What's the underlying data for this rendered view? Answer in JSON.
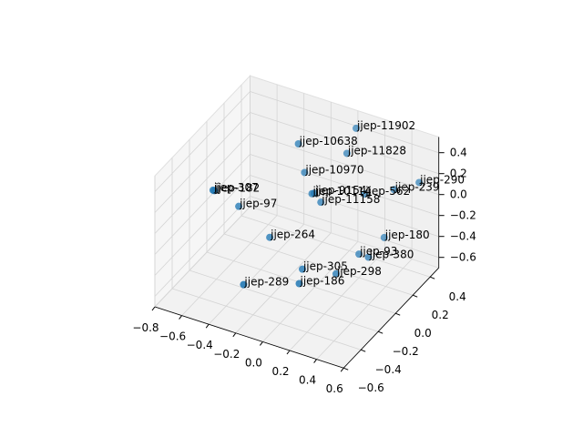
{
  "chart_data": {
    "type": "scatter3d",
    "labels": [
      "jjep-11902",
      "jjep-10638",
      "jjep-11828",
      "jjep-10970",
      "jjep-307",
      "jjep-182",
      "jjep-97",
      "jjep-290",
      "jjep-239",
      "jjep-10114",
      "jjep-9154",
      "jjep-11158",
      "jjep-562",
      "jjep-264",
      "jjep-180",
      "jjep-380",
      "jjep-93",
      "jjep-305",
      "jjep-298",
      "jjep-289",
      "jjep-186"
    ],
    "x": [
      0.0,
      -0.3,
      -0.03,
      -0.28,
      -0.76,
      -0.75,
      -0.64,
      0.48,
      0.32,
      -0.18,
      -0.17,
      -0.14,
      0.12,
      -0.41,
      0.24,
      0.2,
      0.13,
      -0.11,
      0.05,
      -0.36,
      -0.05
    ],
    "y": [
      0.48,
      0.28,
      0.42,
      0.32,
      0.01,
      0.01,
      0.12,
      0.46,
      0.42,
      0.25,
      0.26,
      0.29,
      0.39,
      0.12,
      0.43,
      0.31,
      0.31,
      0.03,
      0.17,
      -0.26,
      -0.1
    ],
    "z": [
      0.4,
      0.3,
      0.2,
      0.0,
      -0.1,
      -0.1,
      -0.3,
      0.1,
      0.0,
      -0.1,
      -0.1,
      -0.2,
      -0.1,
      -0.5,
      -0.5,
      -0.6,
      -0.6,
      -0.6,
      -0.7,
      -0.6,
      -0.6
    ],
    "color": "#1f77b4",
    "xlim": [
      -0.8,
      0.6
    ],
    "ylim": [
      -0.6,
      0.5
    ],
    "zlim": [
      -0.7,
      0.55
    ],
    "xticks": [
      {
        "value": -0.8,
        "label": "−0.8"
      },
      {
        "value": -0.6,
        "label": "−0.6"
      },
      {
        "value": -0.4,
        "label": "−0.4"
      },
      {
        "value": -0.2,
        "label": "−0.2"
      },
      {
        "value": 0,
        "label": "0.0"
      },
      0.2,
      0.4,
      0.6
    ],
    "yticks": [
      {
        "value": -0.6,
        "label": "−0.6"
      },
      {
        "value": -0.4,
        "label": "−0.4"
      },
      {
        "value": -0.2,
        "label": "−0.2"
      },
      {
        "value": 0,
        "label": "0.0"
      },
      0.2,
      0.4
    ],
    "zticks": [
      {
        "value": -0.6,
        "label": "−0.6"
      },
      {
        "value": -0.4,
        "label": "−0.4"
      },
      {
        "value": -0.2,
        "label": "−0.2"
      },
      {
        "value": 0,
        "label": "0.0"
      },
      0.2,
      0.4
    ],
    "grid": true
  }
}
